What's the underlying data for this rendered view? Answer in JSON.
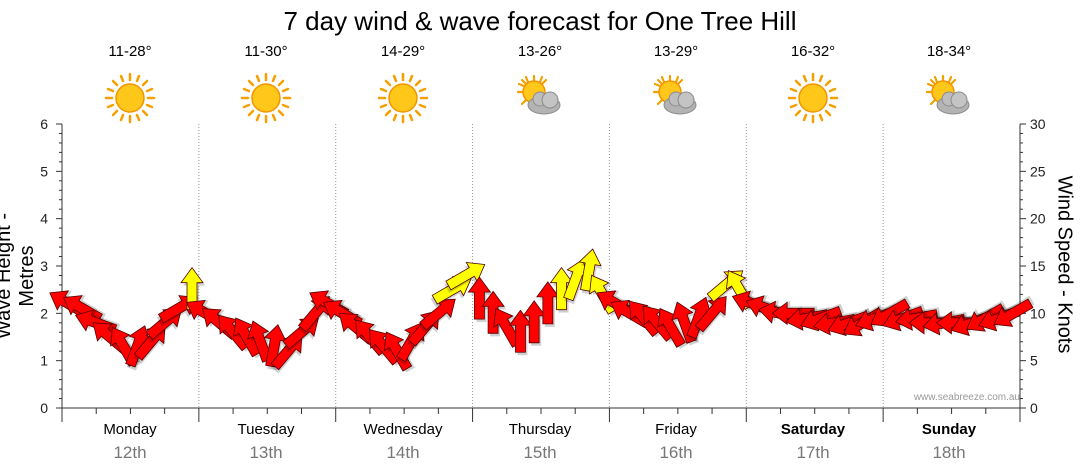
{
  "title": "7 day wind & wave forecast for One Tree Hill",
  "credit": "www.seabreeze.com.au",
  "days": [
    {
      "name": "Monday",
      "date": "12th",
      "temp": "11-28°",
      "icon": "sunny-icon",
      "weekend": false
    },
    {
      "name": "Tuesday",
      "date": "13th",
      "temp": "11-30°",
      "icon": "sunny-icon",
      "weekend": false
    },
    {
      "name": "Wednesday",
      "date": "14th",
      "temp": "14-29°",
      "icon": "sunny-icon",
      "weekend": false
    },
    {
      "name": "Thursday",
      "date": "15th",
      "temp": "13-26°",
      "icon": "partly-cloudy-icon",
      "weekend": false
    },
    {
      "name": "Friday",
      "date": "16th",
      "temp": "13-29°",
      "icon": "partly-cloudy-icon",
      "weekend": false
    },
    {
      "name": "Saturday",
      "date": "17th",
      "temp": "16-32°",
      "icon": "sunny-icon",
      "weekend": true
    },
    {
      "name": "Sunday",
      "date": "18th",
      "temp": "18-34°",
      "icon": "partly-cloudy-icon",
      "weekend": true
    }
  ],
  "colors": {
    "sun": "#f9a602",
    "cloud": "#a9a9a9",
    "strong_wind": "#ff0000",
    "moderate_wind": "#ffff00",
    "arrow_outline": "#550000",
    "grid": "#999999"
  },
  "chart_data": {
    "type": "line",
    "title": "7 day wind & wave forecast for One Tree Hill",
    "ylabel_left": "Wave Height - Metres",
    "ylabel_right": "Wind Speed - Knots",
    "ylim_left": [
      0,
      6
    ],
    "ylim_right": [
      0,
      30
    ],
    "yticks_left": [
      "0",
      "1",
      "2",
      "3",
      "4",
      "5",
      "6"
    ],
    "yticks_right": [
      "0",
      "5",
      "10",
      "15",
      "20",
      "25",
      "30"
    ],
    "x_categories": [
      "Monday 12th",
      "Tuesday 13th",
      "Wednesday 14th",
      "Thursday 15th",
      "Friday 16th",
      "Saturday 17th",
      "Sunday 18th"
    ],
    "grid": true,
    "series": [
      {
        "kind": "wind_arrows",
        "x_day": [
          0.05,
          0.15,
          0.25,
          0.35,
          0.45,
          0.55,
          0.65,
          0.75,
          0.85,
          0.95,
          1.05,
          1.15,
          1.25,
          1.35,
          1.45,
          1.55,
          1.65,
          1.75,
          1.85,
          1.95,
          2.05,
          2.15,
          2.25,
          2.35,
          2.45,
          2.55,
          2.65,
          2.75,
          2.85,
          2.95,
          3.05,
          3.15,
          3.25,
          3.35,
          3.45,
          3.55,
          3.65,
          3.75,
          3.85,
          3.95,
          4.05,
          4.15,
          4.25,
          4.35,
          4.45,
          4.55,
          4.65,
          4.75,
          4.85,
          4.95,
          5.05,
          5.15,
          5.25,
          5.35,
          5.45,
          5.55,
          5.65,
          5.75,
          5.85,
          5.95,
          6.05,
          6.15,
          6.25,
          6.35,
          6.45,
          6.55,
          6.65,
          6.75,
          6.85,
          6.95
        ],
        "knots": [
          11,
          10.5,
          9,
          7.5,
          6.5,
          6.5,
          7,
          9,
          10.5,
          12.5,
          10,
          9,
          8,
          7.5,
          7,
          6.5,
          6,
          8,
          10,
          11,
          10,
          8.5,
          7.5,
          6.5,
          6,
          7,
          8.5,
          10,
          12.5,
          14,
          11.5,
          10,
          8.5,
          8,
          9,
          11,
          12.5,
          13.5,
          14.5,
          12,
          11,
          10,
          9.5,
          9,
          8.5,
          9,
          9.5,
          10,
          13,
          12.5,
          11,
          10.5,
          10,
          10,
          9.5,
          9.5,
          9,
          9,
          9,
          9.5,
          10,
          9.5,
          9.5,
          9,
          9,
          9,
          9,
          9.5,
          9.5,
          10
        ],
        "direction_deg": [
          300,
          300,
          290,
          310,
          330,
          20,
          40,
          50,
          60,
          0,
          300,
          310,
          320,
          330,
          340,
          10,
          40,
          50,
          40,
          300,
          300,
          310,
          320,
          320,
          330,
          30,
          40,
          50,
          60,
          60,
          0,
          0,
          330,
          0,
          0,
          0,
          0,
          20,
          10,
          330,
          300,
          300,
          320,
          320,
          330,
          340,
          20,
          40,
          50,
          330,
          290,
          290,
          280,
          270,
          260,
          250,
          260,
          250,
          240,
          250,
          240,
          250,
          260,
          270,
          260,
          270,
          250,
          240,
          250,
          240
        ]
      }
    ]
  }
}
